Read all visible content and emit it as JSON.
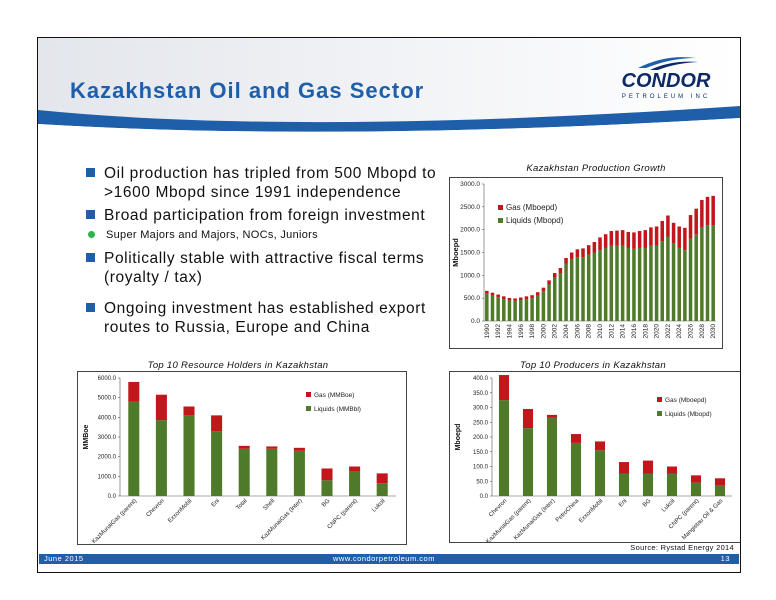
{
  "title": "Kazakhstan Oil and Gas Sector",
  "logo": {
    "word": "CONDOR",
    "sub": "PETROLEUM INC"
  },
  "bullets": [
    {
      "level": 1,
      "text": "Oil production has tripled from 500 Mbopd to >1600 Mbopd since 1991 independence"
    },
    {
      "level": 1,
      "text": "Broad participation from foreign investment"
    },
    {
      "level": 2,
      "text": "Super Majors and Majors, NOCs, Juniors"
    },
    {
      "level": 1,
      "text": "Politically stable with attractive fiscal terms (royalty / tax)"
    },
    {
      "level": 1,
      "text": "Ongoing investment has established export routes to Russia, Europe and China"
    }
  ],
  "colors": {
    "header_blue": "#1f5ea8",
    "gas": "#c0161c",
    "liquids": "#4e7a2a"
  },
  "chart_data": [
    {
      "type": "bar",
      "stacked": true,
      "title": "Kazakhstan Production Growth",
      "ylabel": "Mboepd",
      "ylim": [
        0,
        3000
      ],
      "yticks": [
        "0.0",
        "500.0",
        "1000.0",
        "1500.0",
        "2000.0",
        "2500.0",
        "3000.0"
      ],
      "legend_position": "top-left",
      "x": [
        1990,
        1991,
        1992,
        1993,
        1994,
        1995,
        1996,
        1997,
        1998,
        1999,
        2000,
        2001,
        2002,
        2003,
        2004,
        2005,
        2006,
        2007,
        2008,
        2009,
        2010,
        2011,
        2012,
        2013,
        2014,
        2015,
        2016,
        2017,
        2018,
        2019,
        2020,
        2021,
        2022,
        2023,
        2024,
        2025,
        2026,
        2027,
        2028,
        2029,
        2030
      ],
      "xtick_labels": [
        "1990",
        "1992",
        "1994",
        "1996",
        "1998",
        "2000",
        "2002",
        "2004",
        "2006",
        "2008",
        "2010",
        "2012",
        "2014",
        "2016",
        "2018",
        "2020",
        "2022",
        "2024",
        "2026",
        "2028",
        "2030"
      ],
      "series": [
        {
          "name": "Gas (Mboepd)",
          "color": "#c0161c",
          "values": [
            60,
            60,
            60,
            60,
            55,
            55,
            55,
            60,
            65,
            70,
            80,
            90,
            100,
            110,
            130,
            150,
            170,
            190,
            210,
            230,
            280,
            300,
            320,
            330,
            340,
            350,
            360,
            370,
            390,
            400,
            420,
            440,
            460,
            450,
            470,
            490,
            520,
            560,
            600,
            620,
            640
          ]
        },
        {
          "name": "Liquids (Mbopd)",
          "color": "#4e7a2a",
          "values": [
            600,
            560,
            520,
            480,
            450,
            440,
            460,
            480,
            500,
            560,
            650,
            800,
            950,
            1050,
            1250,
            1350,
            1400,
            1400,
            1450,
            1500,
            1550,
            1600,
            1650,
            1650,
            1650,
            1600,
            1580,
            1600,
            1600,
            1650,
            1650,
            1750,
            1850,
            1700,
            1600,
            1550,
            1800,
            1900,
            2050,
            2100,
            2100
          ]
        }
      ]
    },
    {
      "type": "bar",
      "stacked": true,
      "title": "Top 10 Resource Holders in Kazakhstan",
      "ylabel": "MMBoe",
      "ylim": [
        0,
        6000
      ],
      "yticks": [
        "0.0",
        "1000.0",
        "2000.0",
        "3000.0",
        "4000.0",
        "5000.0",
        "6000.0"
      ],
      "legend_position": "top-right",
      "categories": [
        "KazMunaiGas (parent)",
        "Chevron",
        "ExxonMobil",
        "Eni",
        "Total",
        "Shell",
        "KazMunaiGas (Inter)",
        "BG",
        "CNPC (parent)",
        "Lukoil"
      ],
      "series": [
        {
          "name": "Gas (MMBoe)",
          "color": "#c0161c",
          "values": [
            1000,
            1300,
            450,
            800,
            150,
            120,
            150,
            600,
            250,
            500
          ]
        },
        {
          "name": "Liquids (MMBbl)",
          "color": "#4e7a2a",
          "values": [
            4800,
            3850,
            4100,
            3300,
            2400,
            2400,
            2300,
            800,
            1250,
            650
          ]
        }
      ]
    },
    {
      "type": "bar",
      "stacked": true,
      "title": "Top 10 Producers in Kazakhstan",
      "ylabel": "Mboepd",
      "ylim": [
        0,
        400
      ],
      "yticks": [
        "0.0",
        "50.0",
        "100.0",
        "150.0",
        "200.0",
        "250.0",
        "300.0",
        "350.0",
        "400.0"
      ],
      "legend_position": "top-right",
      "categories": [
        "Chevron",
        "KazMunaiGas (parent)",
        "KazMunaiGas (Inter)",
        "PetroChina",
        "ExxonMobil",
        "Eni",
        "BG",
        "Lukoil",
        "CNPC (parent)",
        "Mangistau Oil & Gas"
      ],
      "series": [
        {
          "name": "Gas (Mboepd)",
          "color": "#c0161c",
          "values": [
            85,
            65,
            10,
            30,
            30,
            40,
            45,
            25,
            25,
            25
          ]
        },
        {
          "name": "Liquids (Mbopd)",
          "color": "#4e7a2a",
          "values": [
            325,
            230,
            265,
            180,
            155,
            75,
            75,
            75,
            45,
            35
          ]
        }
      ]
    }
  ],
  "source": "Source: Rystad Energy 2014",
  "footer": {
    "date": "June 2015",
    "url": "www.condorpetroleum.com",
    "page": "13"
  }
}
